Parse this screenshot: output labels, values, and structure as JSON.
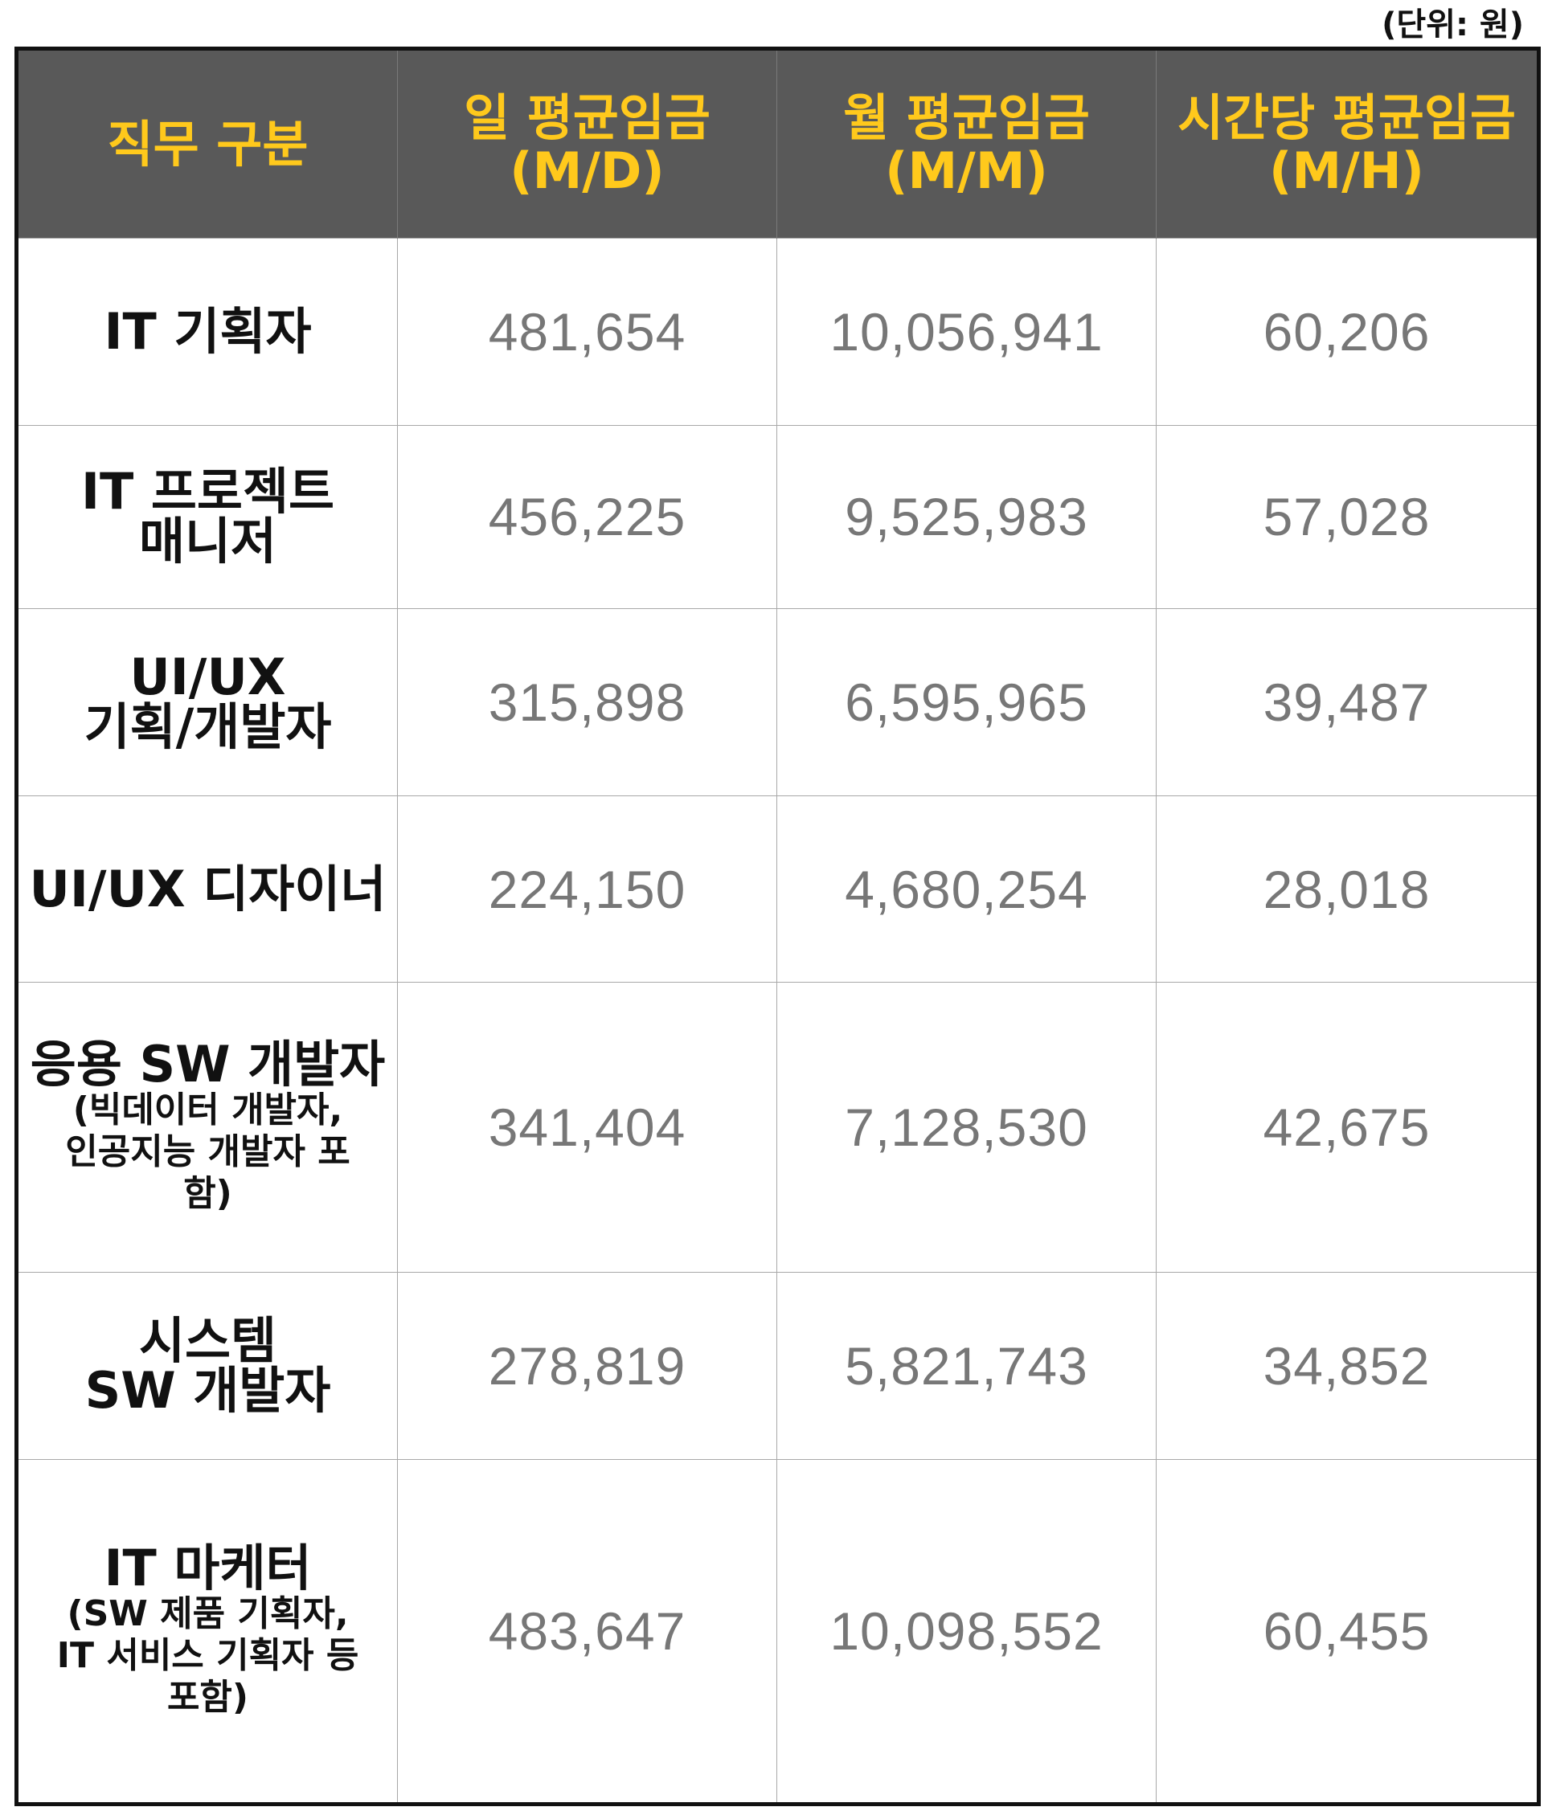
{
  "unit_note": "(단위: 원)",
  "table": {
    "headers": [
      "직무 구분",
      "일 평균임금\n(M/D)",
      "월 평균임금\n(M/M)",
      "시간당 평균임금\n(M/H)"
    ],
    "rows": [
      {
        "job": "IT 기획자",
        "job_sub": "",
        "daily": "481,654",
        "monthly": "10,056,941",
        "hourly": "60,206"
      },
      {
        "job": "IT 프로젝트\n매니저",
        "job_sub": "",
        "daily": "456,225",
        "monthly": "9,525,983",
        "hourly": "57,028"
      },
      {
        "job": "UI/UX\n기획/개발자",
        "job_sub": "",
        "daily": "315,898",
        "monthly": "6,595,965",
        "hourly": "39,487"
      },
      {
        "job": "UI/UX 디자이너",
        "job_sub": "",
        "daily": "224,150",
        "monthly": "4,680,254",
        "hourly": "28,018"
      },
      {
        "job": "응용 SW 개발자",
        "job_sub": "(빅데이터 개발자,\n인공지능 개발자 포\n함)",
        "daily": "341,404",
        "monthly": "7,128,530",
        "hourly": "42,675"
      },
      {
        "job": "시스템\nSW 개발자",
        "job_sub": "",
        "daily": "278,819",
        "monthly": "5,821,743",
        "hourly": "34,852"
      },
      {
        "job": "IT 마케터",
        "job_sub": "(SW 제품 기획자,\nIT 서비스 기획자 등\n포함)",
        "daily": "483,647",
        "monthly": "10,098,552",
        "hourly": "60,455"
      }
    ]
  },
  "colors": {
    "header_background": "#595959",
    "header_text": "#ffc91c",
    "job_text": "#111111",
    "number_text": "#777777"
  }
}
